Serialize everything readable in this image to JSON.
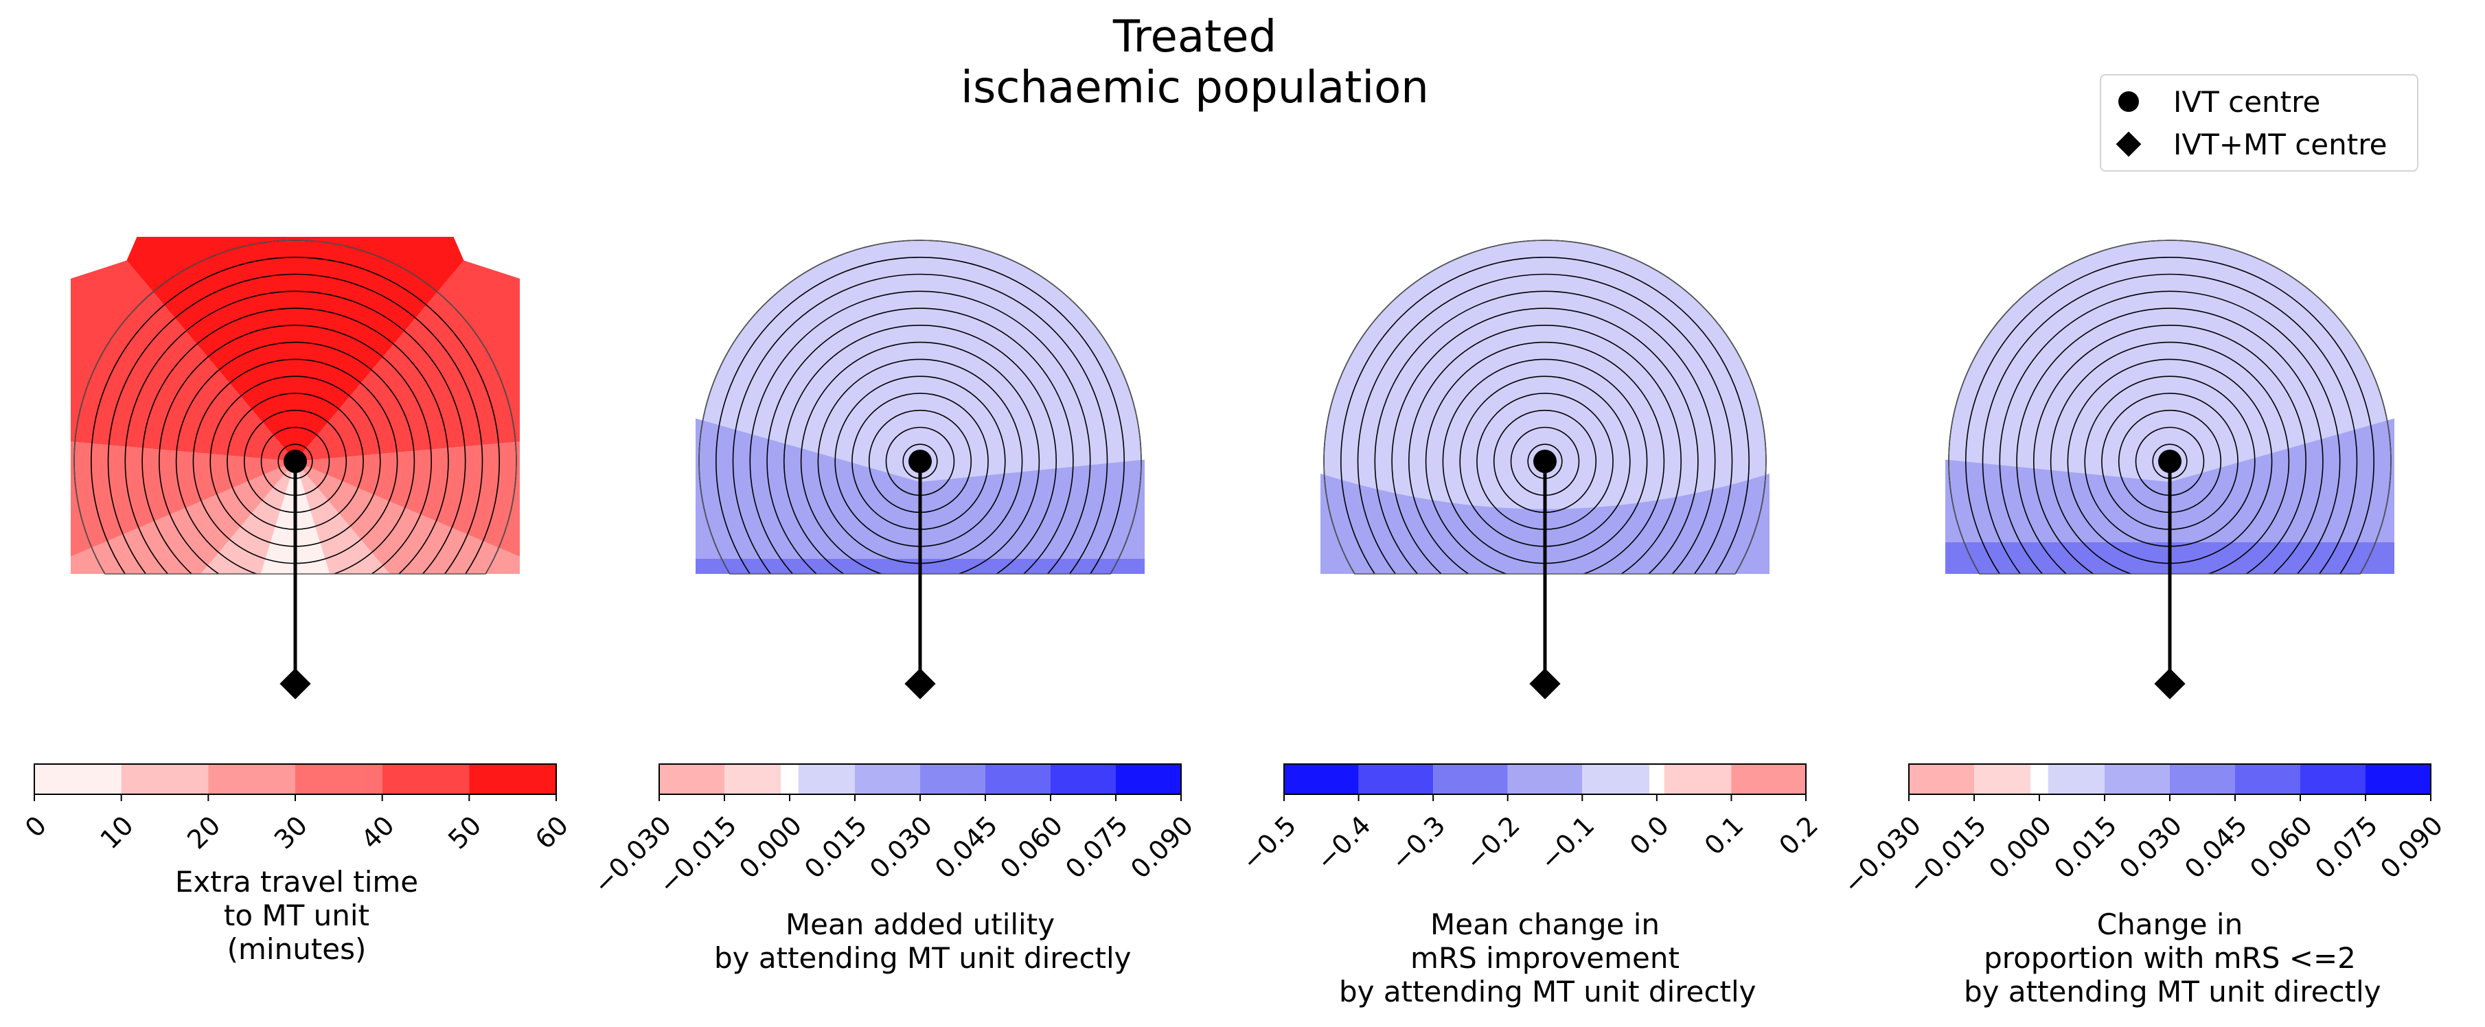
{
  "figure": {
    "title_line1": "Treated",
    "title_line2": "ischaemic population"
  },
  "legend": {
    "items": [
      {
        "label": "IVT centre",
        "marker": "circle"
      },
      {
        "label": "IVT+MT centre",
        "marker": "diamond"
      }
    ]
  },
  "chart_data": [
    {
      "type": "heatmap",
      "title": "",
      "label_lines": [
        "Extra travel time",
        "to MT unit",
        "(minutes)"
      ],
      "colorbar": {
        "range": [
          0,
          60
        ],
        "ticks": [
          "0",
          "10",
          "20",
          "30",
          "40",
          "50",
          "60"
        ],
        "tick_rotation": 45,
        "bins": [
          {
            "from": 0,
            "to": 10,
            "color": "#fff0f0"
          },
          {
            "from": 10,
            "to": 20,
            "color": "#ffc2c2"
          },
          {
            "from": 20,
            "to": 30,
            "color": "#ff9a9a"
          },
          {
            "from": 30,
            "to": 40,
            "color": "#ff7171"
          },
          {
            "from": 40,
            "to": 50,
            "color": "#ff4545"
          },
          {
            "from": 50,
            "to": 60,
            "color": "#ff1818"
          }
        ]
      },
      "map": {
        "rings": 13,
        "mode": "angular",
        "zone_colors": [
          "#fff0f0",
          "#ffc2c2",
          "#ff9a9a",
          "#ff7171",
          "#ff4545",
          "#ff1818"
        ]
      }
    },
    {
      "type": "heatmap",
      "title": "",
      "label_lines": [
        "Mean added utility",
        "by attending MT unit directly"
      ],
      "colorbar": {
        "range": [
          -0.03,
          0.09
        ],
        "ticks": [
          "−0.030",
          "−0.015",
          "0.000",
          "0.015",
          "0.030",
          "0.045",
          "0.060",
          "0.075",
          "0.090"
        ],
        "tick_rotation": 45,
        "bins": [
          {
            "from": -0.03,
            "to": -0.015,
            "color": "#ffb3b3"
          },
          {
            "from": -0.015,
            "to": -0.002,
            "color": "#ffd6d6"
          },
          {
            "from": -0.002,
            "to": 0.002,
            "color": "#ffffff"
          },
          {
            "from": 0.002,
            "to": 0.015,
            "color": "#d5d5f9"
          },
          {
            "from": 0.015,
            "to": 0.03,
            "color": "#b0b0f6"
          },
          {
            "from": 0.03,
            "to": 0.045,
            "color": "#8a8af5"
          },
          {
            "from": 0.045,
            "to": 0.06,
            "color": "#6565f8"
          },
          {
            "from": 0.06,
            "to": 0.075,
            "color": "#3d3dfb"
          },
          {
            "from": 0.075,
            "to": 0.09,
            "color": "#1414fe"
          }
        ]
      },
      "map": {
        "rings": 13,
        "mode": "wedge",
        "zone_colors": [
          "#cfcff9",
          "#a5a5f4",
          "#7979f4"
        ]
      }
    },
    {
      "type": "heatmap",
      "title": "",
      "label_lines": [
        "Mean change in",
        "mRS improvement",
        "by attending MT unit directly"
      ],
      "colorbar": {
        "range": [
          -0.5,
          0.2
        ],
        "ticks": [
          "−0.5",
          "−0.4",
          "−0.3",
          "−0.2",
          "−0.1",
          "0.0",
          "0.1",
          "0.2"
        ],
        "tick_rotation": 45,
        "bins": [
          {
            "from": -0.5,
            "to": -0.4,
            "color": "#1414fe"
          },
          {
            "from": -0.4,
            "to": -0.3,
            "color": "#4848fa"
          },
          {
            "from": -0.3,
            "to": -0.2,
            "color": "#7a7af5"
          },
          {
            "from": -0.2,
            "to": -0.1,
            "color": "#a7a7f4"
          },
          {
            "from": -0.1,
            "to": -0.01,
            "color": "#d5d5f9"
          },
          {
            "from": -0.01,
            "to": 0.01,
            "color": "#ffffff"
          },
          {
            "from": 0.01,
            "to": 0.1,
            "color": "#ffcfcf"
          },
          {
            "from": 0.1,
            "to": 0.2,
            "color": "#ff9a9a"
          }
        ]
      },
      "map": {
        "rings": 13,
        "mode": "lens",
        "zone_colors": [
          "#cfcff9",
          "#a5a5f4"
        ]
      }
    },
    {
      "type": "heatmap",
      "title": "",
      "label_lines": [
        "Change in",
        "proportion with mRS <=2",
        "by attending MT unit directly"
      ],
      "colorbar": {
        "range": [
          -0.03,
          0.09
        ],
        "ticks": [
          "−0.030",
          "−0.015",
          "0.000",
          "0.015",
          "0.030",
          "0.045",
          "0.060",
          "0.075",
          "0.090"
        ],
        "tick_rotation": 45,
        "bins": [
          {
            "from": -0.03,
            "to": -0.015,
            "color": "#ffb3b3"
          },
          {
            "from": -0.015,
            "to": -0.002,
            "color": "#ffd6d6"
          },
          {
            "from": -0.002,
            "to": 0.002,
            "color": "#ffffff"
          },
          {
            "from": 0.002,
            "to": 0.015,
            "color": "#d5d5f9"
          },
          {
            "from": 0.015,
            "to": 0.03,
            "color": "#b0b0f6"
          },
          {
            "from": 0.03,
            "to": 0.045,
            "color": "#8a8af5"
          },
          {
            "from": 0.045,
            "to": 0.06,
            "color": "#6565f8"
          },
          {
            "from": 0.06,
            "to": 0.075,
            "color": "#3d3dfb"
          },
          {
            "from": 0.075,
            "to": 0.09,
            "color": "#1414fe"
          }
        ]
      },
      "map": {
        "rings": 13,
        "mode": "wedge",
        "zone_colors": [
          "#cfcff9",
          "#a5a5f4",
          "#7979f4"
        ]
      }
    }
  ]
}
